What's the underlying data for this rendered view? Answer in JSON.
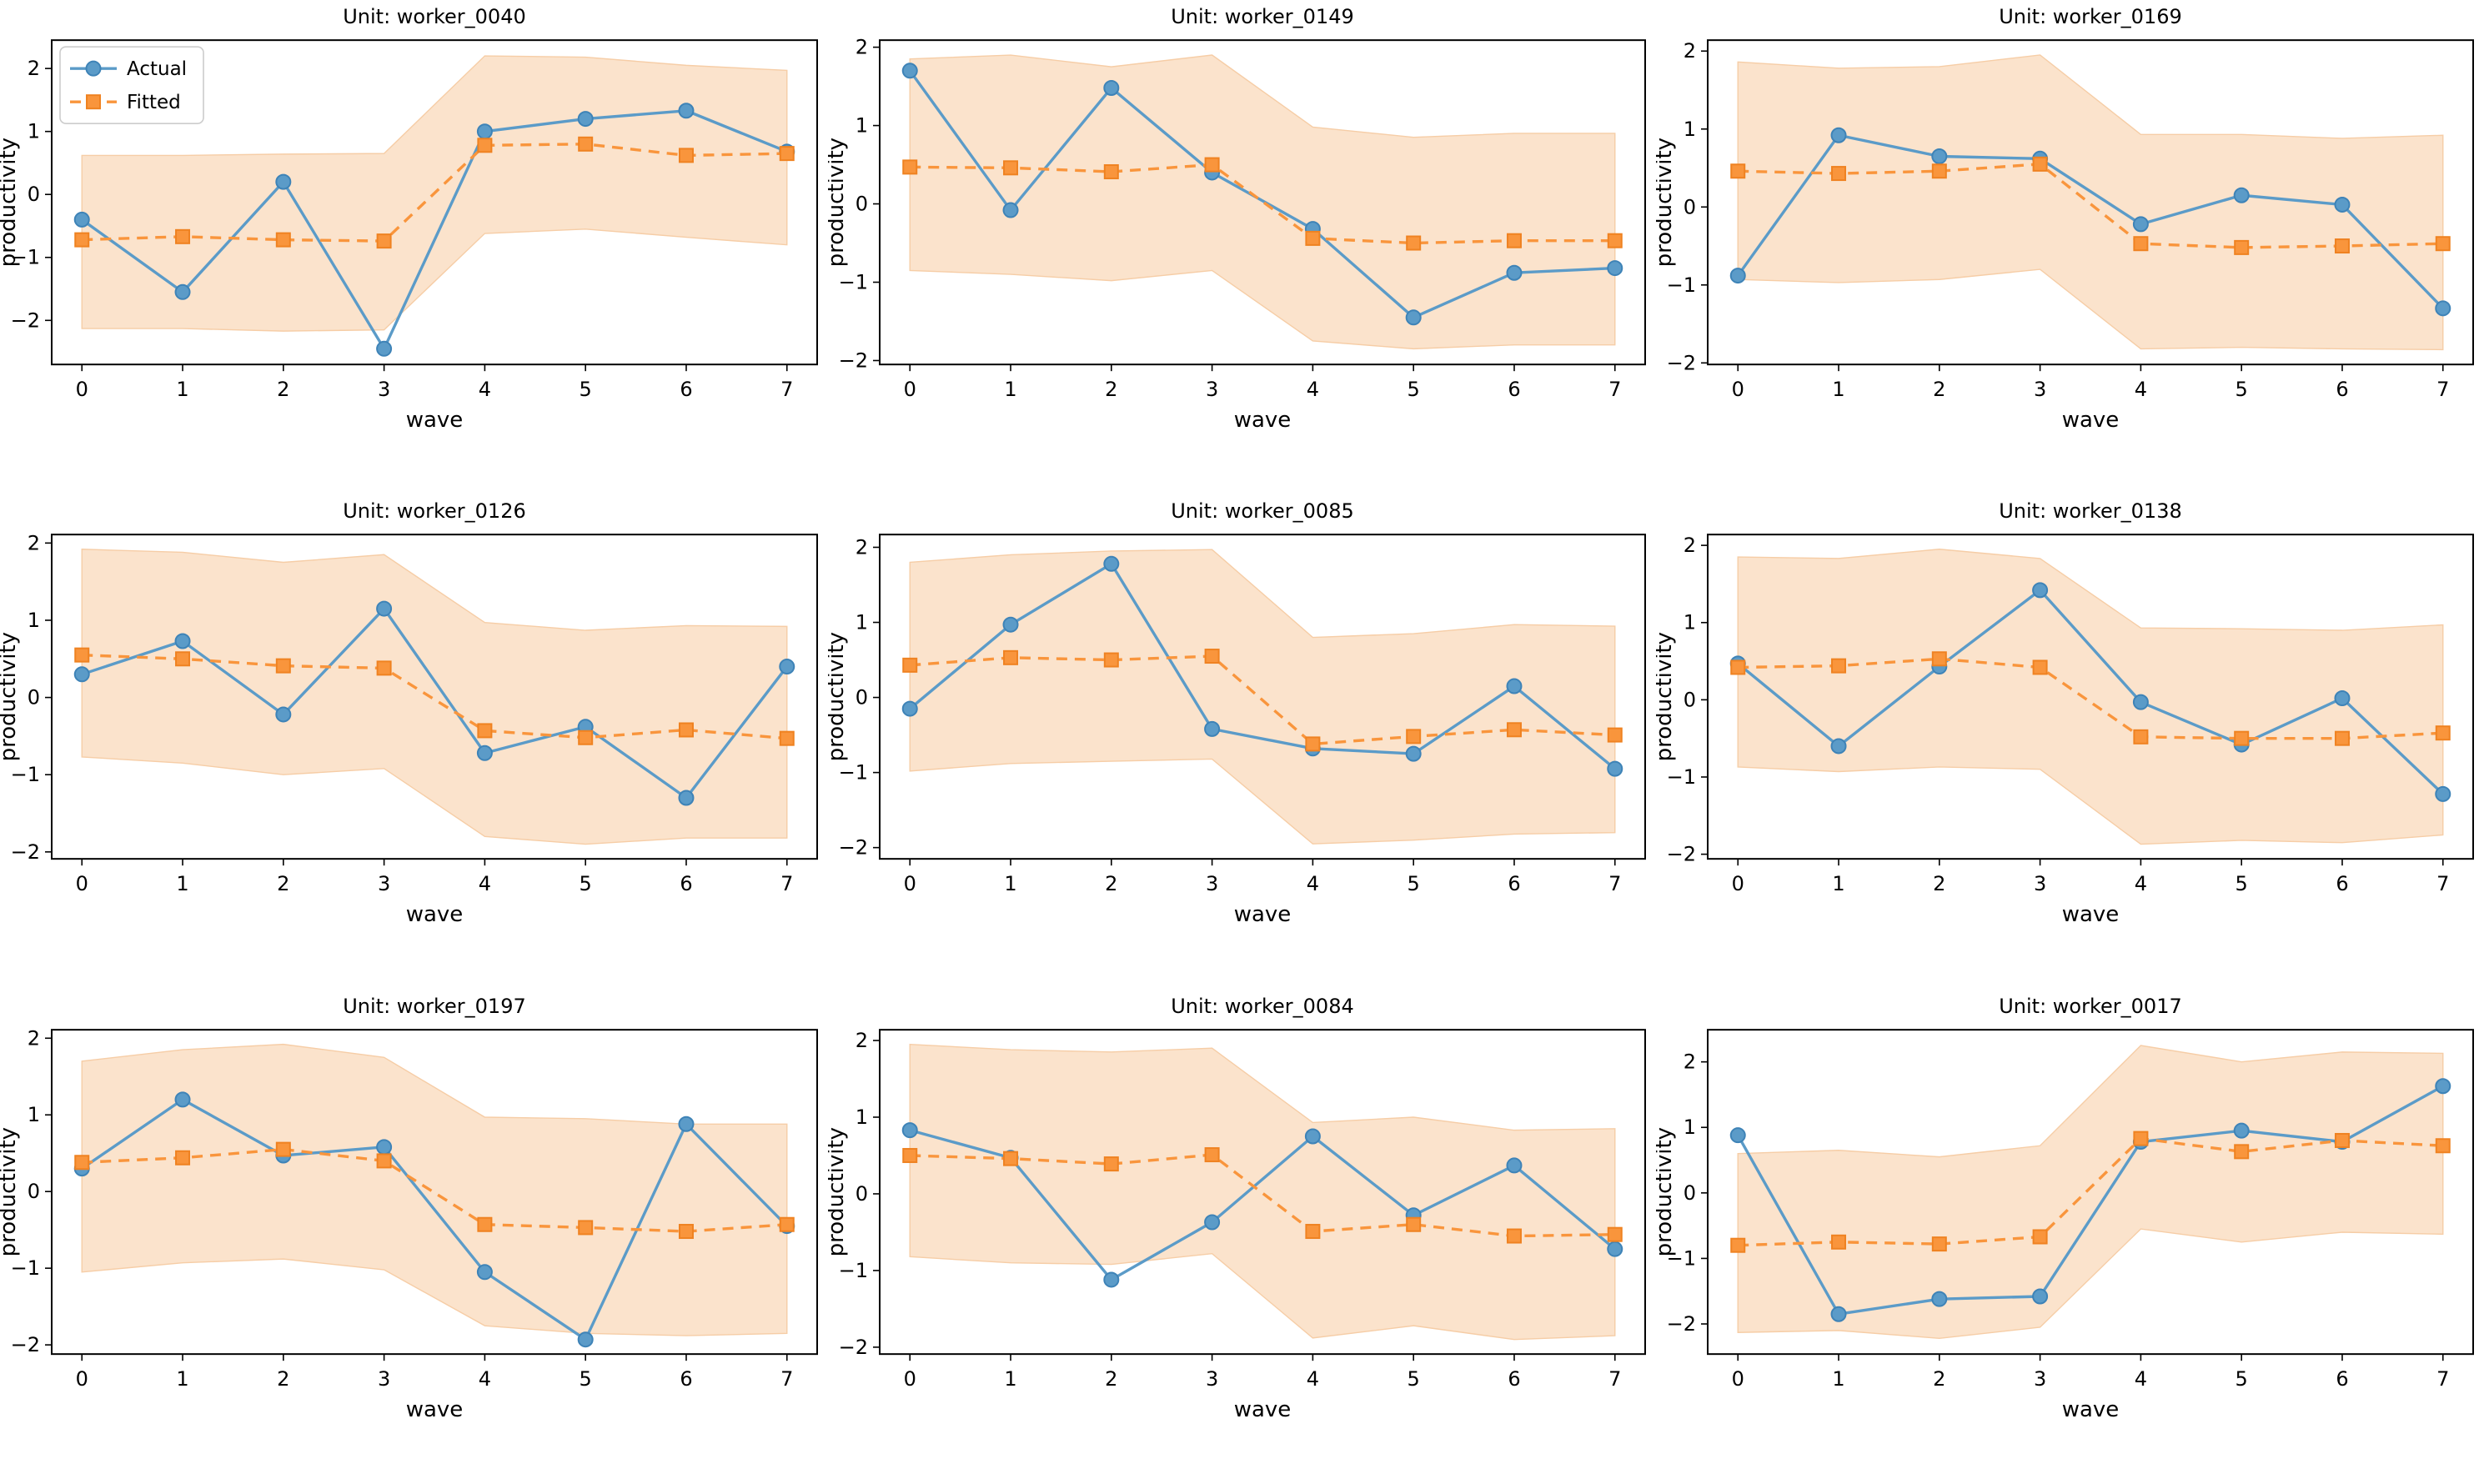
{
  "figure": {
    "xlabel": "wave",
    "ylabel": "productivity",
    "legend": {
      "items": [
        {
          "label": "Actual"
        },
        {
          "label": "Fitted"
        }
      ],
      "position": "upper left"
    },
    "colors": {
      "actual": "#5B9BC8",
      "actual_edge": "#3E83B7",
      "fitted": "#F9953C",
      "fitted_edge": "#EF8221",
      "band_fill": "#FBE3CC",
      "band_edge": "#F6CDA6",
      "spine": "#000000",
      "text": "#000000"
    }
  },
  "chart_data": [
    {
      "type": "line",
      "title": "Unit: worker_0040",
      "xlabel": "wave",
      "ylabel": "productivity",
      "x": [
        0,
        1,
        2,
        3,
        4,
        5,
        6,
        7
      ],
      "xticks": [
        0,
        1,
        2,
        3,
        4,
        5,
        6,
        7
      ],
      "yticks": [
        -2,
        -1,
        0,
        1,
        2
      ],
      "xlim": [
        -0.3,
        7.3
      ],
      "ylim": [
        -2.7,
        2.45
      ],
      "legend": true,
      "series": [
        {
          "name": "Actual",
          "values": [
            -0.4,
            -1.55,
            0.2,
            -2.45,
            1.0,
            1.2,
            1.33,
            0.68
          ]
        },
        {
          "name": "Fitted",
          "values": [
            -0.72,
            -0.67,
            -0.72,
            -0.74,
            0.78,
            0.8,
            0.62,
            0.65
          ]
        }
      ],
      "band": {
        "upper": [
          0.62,
          0.62,
          0.64,
          0.65,
          2.2,
          2.18,
          2.05,
          1.97
        ],
        "lower": [
          -2.13,
          -2.13,
          -2.17,
          -2.15,
          -0.62,
          -0.55,
          -0.68,
          -0.8
        ]
      }
    },
    {
      "type": "line",
      "title": "Unit: worker_0149",
      "xlabel": "wave",
      "ylabel": "productivity",
      "x": [
        0,
        1,
        2,
        3,
        4,
        5,
        6,
        7
      ],
      "xticks": [
        0,
        1,
        2,
        3,
        4,
        5,
        6,
        7
      ],
      "yticks": [
        -2,
        -1,
        0,
        1,
        2
      ],
      "xlim": [
        -0.3,
        7.3
      ],
      "ylim": [
        -2.05,
        2.09
      ],
      "legend": false,
      "series": [
        {
          "name": "Actual",
          "values": [
            1.7,
            -0.08,
            1.48,
            0.4,
            -0.32,
            -1.45,
            -0.88,
            -0.82
          ]
        },
        {
          "name": "Fitted",
          "values": [
            0.47,
            0.46,
            0.41,
            0.5,
            -0.44,
            -0.5,
            -0.47,
            -0.47
          ]
        }
      ],
      "band": {
        "upper": [
          1.85,
          1.9,
          1.75,
          1.9,
          0.98,
          0.85,
          0.9,
          0.9
        ],
        "lower": [
          -0.85,
          -0.9,
          -0.98,
          -0.85,
          -1.75,
          -1.85,
          -1.8,
          -1.8
        ]
      }
    },
    {
      "type": "line",
      "title": "Unit: worker_0169",
      "xlabel": "wave",
      "ylabel": "productivity",
      "x": [
        0,
        1,
        2,
        3,
        4,
        5,
        6,
        7
      ],
      "xticks": [
        0,
        1,
        2,
        3,
        4,
        5,
        6,
        7
      ],
      "yticks": [
        -2,
        -1,
        0,
        1,
        2
      ],
      "xlim": [
        -0.3,
        7.3
      ],
      "ylim": [
        -2.02,
        2.14
      ],
      "legend": false,
      "series": [
        {
          "name": "Actual",
          "values": [
            -0.88,
            0.92,
            0.65,
            0.62,
            -0.22,
            0.15,
            0.03,
            -1.3
          ]
        },
        {
          "name": "Fitted",
          "values": [
            0.46,
            0.43,
            0.46,
            0.55,
            -0.47,
            -0.52,
            -0.5,
            -0.47
          ]
        }
      ],
      "band": {
        "upper": [
          1.86,
          1.78,
          1.8,
          1.95,
          0.93,
          0.93,
          0.88,
          0.92
        ],
        "lower": [
          -0.93,
          -0.97,
          -0.93,
          -0.8,
          -1.82,
          -1.8,
          -1.82,
          -1.83
        ]
      }
    },
    {
      "type": "line",
      "title": "Unit: worker_0126",
      "xlabel": "wave",
      "ylabel": "productivity",
      "x": [
        0,
        1,
        2,
        3,
        4,
        5,
        6,
        7
      ],
      "xticks": [
        0,
        1,
        2,
        3,
        4,
        5,
        6,
        7
      ],
      "yticks": [
        -2,
        -1,
        0,
        1,
        2
      ],
      "xlim": [
        -0.3,
        7.3
      ],
      "ylim": [
        -2.09,
        2.11
      ],
      "legend": false,
      "series": [
        {
          "name": "Actual",
          "values": [
            0.3,
            0.73,
            -0.22,
            1.15,
            -0.72,
            -0.38,
            -1.3,
            0.4
          ]
        },
        {
          "name": "Fitted",
          "values": [
            0.55,
            0.5,
            0.41,
            0.38,
            -0.43,
            -0.52,
            -0.42,
            -0.53
          ]
        }
      ],
      "band": {
        "upper": [
          1.92,
          1.88,
          1.75,
          1.85,
          0.97,
          0.87,
          0.93,
          0.92
        ],
        "lower": [
          -0.77,
          -0.85,
          -1.0,
          -0.92,
          -1.8,
          -1.9,
          -1.82,
          -1.82
        ]
      }
    },
    {
      "type": "line",
      "title": "Unit: worker_0085",
      "xlabel": "wave",
      "ylabel": "productivity",
      "x": [
        0,
        1,
        2,
        3,
        4,
        5,
        6,
        7
      ],
      "xticks": [
        0,
        1,
        2,
        3,
        4,
        5,
        6,
        7
      ],
      "yticks": [
        -2,
        -1,
        0,
        1,
        2
      ],
      "xlim": [
        -0.3,
        7.3
      ],
      "ylim": [
        -2.15,
        2.17
      ],
      "legend": false,
      "series": [
        {
          "name": "Actual",
          "values": [
            -0.15,
            0.97,
            1.78,
            -0.42,
            -0.68,
            -0.75,
            0.15,
            -0.95
          ]
        },
        {
          "name": "Fitted",
          "values": [
            0.43,
            0.53,
            0.5,
            0.55,
            -0.62,
            -0.52,
            -0.43,
            -0.5
          ]
        }
      ],
      "band": {
        "upper": [
          1.8,
          1.9,
          1.95,
          1.97,
          0.8,
          0.85,
          0.97,
          0.95
        ],
        "lower": [
          -0.98,
          -0.88,
          -0.85,
          -0.82,
          -1.95,
          -1.9,
          -1.82,
          -1.8
        ]
      }
    },
    {
      "type": "line",
      "title": "Unit: worker_0138",
      "xlabel": "wave",
      "ylabel": "productivity",
      "x": [
        0,
        1,
        2,
        3,
        4,
        5,
        6,
        7
      ],
      "xticks": [
        0,
        1,
        2,
        3,
        4,
        5,
        6,
        7
      ],
      "yticks": [
        -2,
        -1,
        0,
        1,
        2
      ],
      "xlim": [
        -0.3,
        7.3
      ],
      "ylim": [
        -2.06,
        2.14
      ],
      "legend": false,
      "series": [
        {
          "name": "Actual",
          "values": [
            0.47,
            -0.6,
            0.43,
            1.42,
            -0.03,
            -0.58,
            0.02,
            -1.22
          ]
        },
        {
          "name": "Fitted",
          "values": [
            0.42,
            0.44,
            0.53,
            0.42,
            -0.48,
            -0.5,
            -0.5,
            -0.43
          ]
        }
      ],
      "band": {
        "upper": [
          1.85,
          1.83,
          1.95,
          1.83,
          0.93,
          0.92,
          0.9,
          0.97
        ],
        "lower": [
          -0.87,
          -0.93,
          -0.87,
          -0.9,
          -1.87,
          -1.82,
          -1.85,
          -1.75
        ]
      }
    },
    {
      "type": "line",
      "title": "Unit: worker_0197",
      "xlabel": "wave",
      "ylabel": "productivity",
      "x": [
        0,
        1,
        2,
        3,
        4,
        5,
        6,
        7
      ],
      "xticks": [
        0,
        1,
        2,
        3,
        4,
        5,
        6,
        7
      ],
      "yticks": [
        -2,
        -1,
        0,
        1,
        2
      ],
      "xlim": [
        -0.3,
        7.3
      ],
      "ylim": [
        -2.12,
        2.11
      ],
      "legend": false,
      "series": [
        {
          "name": "Actual",
          "values": [
            0.3,
            1.2,
            0.47,
            0.58,
            -1.05,
            -1.93,
            0.88,
            -0.45
          ]
        },
        {
          "name": "Fitted",
          "values": [
            0.38,
            0.44,
            0.55,
            0.4,
            -0.43,
            -0.47,
            -0.52,
            -0.43
          ]
        }
      ],
      "band": {
        "upper": [
          1.7,
          1.85,
          1.92,
          1.75,
          0.97,
          0.95,
          0.88,
          0.88
        ],
        "lower": [
          -1.05,
          -0.93,
          -0.88,
          -1.02,
          -1.75,
          -1.85,
          -1.88,
          -1.85
        ]
      }
    },
    {
      "type": "line",
      "title": "Unit: worker_0084",
      "xlabel": "wave",
      "ylabel": "productivity",
      "x": [
        0,
        1,
        2,
        3,
        4,
        5,
        6,
        7
      ],
      "xticks": [
        0,
        1,
        2,
        3,
        4,
        5,
        6,
        7
      ],
      "yticks": [
        -2,
        -1,
        0,
        1,
        2
      ],
      "xlim": [
        -0.3,
        7.3
      ],
      "ylim": [
        -2.09,
        2.14
      ],
      "legend": false,
      "series": [
        {
          "name": "Actual",
          "values": [
            0.83,
            0.47,
            -1.12,
            -0.37,
            0.75,
            -0.28,
            0.37,
            -0.72
          ]
        },
        {
          "name": "Fitted",
          "values": [
            0.5,
            0.46,
            0.39,
            0.51,
            -0.49,
            -0.4,
            -0.55,
            -0.53
          ]
        }
      ],
      "band": {
        "upper": [
          1.95,
          1.88,
          1.85,
          1.9,
          0.93,
          1.0,
          0.83,
          0.85
        ],
        "lower": [
          -0.82,
          -0.9,
          -0.92,
          -0.78,
          -1.88,
          -1.72,
          -1.9,
          -1.85
        ]
      }
    },
    {
      "type": "line",
      "title": "Unit: worker_0017",
      "xlabel": "wave",
      "ylabel": "productivity",
      "x": [
        0,
        1,
        2,
        3,
        4,
        5,
        6,
        7
      ],
      "xticks": [
        0,
        1,
        2,
        3,
        4,
        5,
        6,
        7
      ],
      "yticks": [
        -2,
        -1,
        0,
        1,
        2
      ],
      "xlim": [
        -0.3,
        7.3
      ],
      "ylim": [
        -2.46,
        2.49
      ],
      "legend": false,
      "series": [
        {
          "name": "Actual",
          "values": [
            0.88,
            -1.85,
            -1.62,
            -1.58,
            0.78,
            0.95,
            0.78,
            1.63
          ]
        },
        {
          "name": "Fitted",
          "values": [
            -0.8,
            -0.75,
            -0.78,
            -0.67,
            0.83,
            0.63,
            0.8,
            0.72
          ]
        }
      ],
      "band": {
        "upper": [
          0.6,
          0.65,
          0.55,
          0.72,
          2.25,
          2.0,
          2.15,
          2.13
        ],
        "lower": [
          -2.13,
          -2.1,
          -2.22,
          -2.05,
          -0.55,
          -0.75,
          -0.6,
          -0.63
        ]
      }
    }
  ]
}
